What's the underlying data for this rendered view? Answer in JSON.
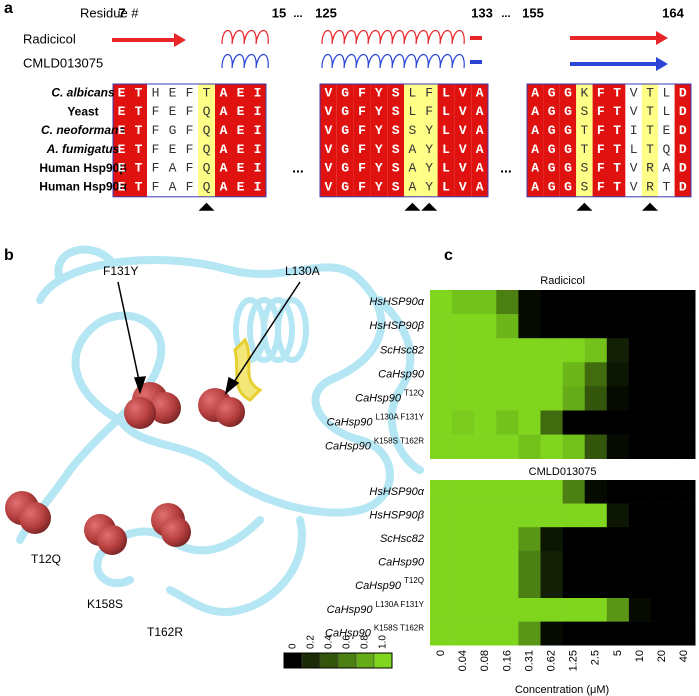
{
  "panel_a": {
    "label": "a",
    "residue_label": "Residue #",
    "separator": "...",
    "residue_numbers": [
      "7",
      "15",
      "125",
      "133",
      "155",
      "164"
    ],
    "ligands": [
      {
        "name": "Radicicol",
        "color": "#e8262a"
      },
      {
        "name": "CMLD013075",
        "color": "#2b44d6"
      }
    ],
    "species": [
      {
        "name": "C. albicans",
        "italic": true,
        "blocks": [
          "ETHEFTAEI",
          "VGFYSLFLVA",
          "AGGKFTVTLD"
        ]
      },
      {
        "name": "Yeast",
        "italic": false,
        "blocks": [
          "ETFEFQAEI",
          "VGFYSLFLVA",
          "AGGSFTVTLD"
        ]
      },
      {
        "name": "C. neoformans",
        "italic": true,
        "blocks": [
          "ETFGFQAEI",
          "VGFYSSYLVA",
          "AGGTFTITED"
        ]
      },
      {
        "name": "A. fumigatus",
        "italic": true,
        "blocks": [
          "ETFEFQAEI",
          "VGFYSAYLVA",
          "AGGTFTLTQD"
        ]
      },
      {
        "name": "Human Hsp90β",
        "italic": false,
        "blocks": [
          "ETFAFQAEI",
          "VGFYSAYLVA",
          "AGGSFTVRAD"
        ]
      },
      {
        "name": "Human Hsp90α",
        "italic": false,
        "blocks": [
          "ETFAFQAEI",
          "VGFYSAYLVA",
          "AGGSFTVRTD"
        ]
      }
    ]
  },
  "panel_b": {
    "label": "b",
    "mutations": [
      "F131Y",
      "L130A",
      "T12Q",
      "K158S",
      "T162R"
    ]
  },
  "panel_c": {
    "label": "c",
    "x_label": "Concentration (μM)",
    "concentrations": [
      "0",
      "0.04",
      "0.08",
      "0.16",
      "0.31",
      "0.62",
      "1.25",
      "2.5",
      "5",
      "10",
      "20",
      "40"
    ],
    "colorbar_ticks": [
      0,
      0.2,
      0.4,
      0.6,
      0.8,
      {
        "value": 1,
        "label": "1.0"
      }
    ],
    "heatmaps": [
      {
        "title": "Radicicol",
        "rows": [
          {
            "name": "HsHSP90α"
          },
          {
            "name": "HsHSP90β"
          },
          {
            "name": "ScHsc82"
          },
          {
            "name": "CaHsp90"
          },
          {
            "name": "CaHsp90",
            "mutation": "T12Q"
          },
          {
            "name": "CaHsp90",
            "mutation": "L130A F131Y"
          },
          {
            "name": "CaHsp90",
            "mutation": "K158S T162R"
          }
        ],
        "values": [
          [
            1,
            0.9,
            0.9,
            0.6,
            0.05,
            0,
            0,
            0,
            0,
            0,
            0,
            0
          ],
          [
            1,
            1,
            1,
            0.85,
            0.05,
            0,
            0,
            0,
            0,
            0,
            0,
            0
          ],
          [
            1,
            1,
            1,
            1,
            1,
            1,
            1,
            0.9,
            0.15,
            0,
            0,
            0
          ],
          [
            1,
            1,
            1,
            1,
            1,
            1,
            0.85,
            0.5,
            0.1,
            0,
            0,
            0
          ],
          [
            1,
            1,
            1,
            1,
            1,
            1,
            0.8,
            0.4,
            0.05,
            0,
            0,
            0
          ],
          [
            1,
            0.95,
            1,
            0.9,
            1,
            0.5,
            0,
            0,
            0,
            0,
            0,
            0
          ],
          [
            1,
            1,
            1,
            1,
            0.9,
            1,
            0.9,
            0.4,
            0.05,
            0,
            0,
            0
          ]
        ]
      },
      {
        "title": "CMLD013075",
        "rows": [
          {
            "name": "HsHSP90α"
          },
          {
            "name": "HsHSP90β"
          },
          {
            "name": "ScHsc82"
          },
          {
            "name": "CaHsp90"
          },
          {
            "name": "CaHsp90",
            "mutation": "T12Q"
          },
          {
            "name": "CaHsp90",
            "mutation": "L130A F131Y"
          },
          {
            "name": "CaHsp90",
            "mutation": "K158S T162R"
          }
        ],
        "values": [
          [
            1,
            1,
            1,
            1,
            1,
            1,
            0.6,
            0.05,
            0,
            0,
            0,
            0
          ],
          [
            1,
            1,
            1,
            1,
            1,
            1,
            1,
            1,
            0.1,
            0,
            0,
            0
          ],
          [
            1,
            1,
            1,
            1,
            0.7,
            0.1,
            0,
            0,
            0,
            0,
            0,
            0
          ],
          [
            1,
            1,
            1,
            1,
            0.6,
            0.15,
            0,
            0,
            0,
            0,
            0,
            0
          ],
          [
            1,
            1,
            1,
            1,
            0.6,
            0.15,
            0,
            0,
            0,
            0,
            0,
            0
          ],
          [
            1,
            1,
            1,
            1,
            1,
            1,
            1,
            1,
            0.7,
            0.05,
            0,
            0
          ],
          [
            1,
            1,
            1,
            1,
            0.7,
            0.05,
            0,
            0,
            0,
            0,
            0,
            0
          ]
        ]
      }
    ]
  }
}
